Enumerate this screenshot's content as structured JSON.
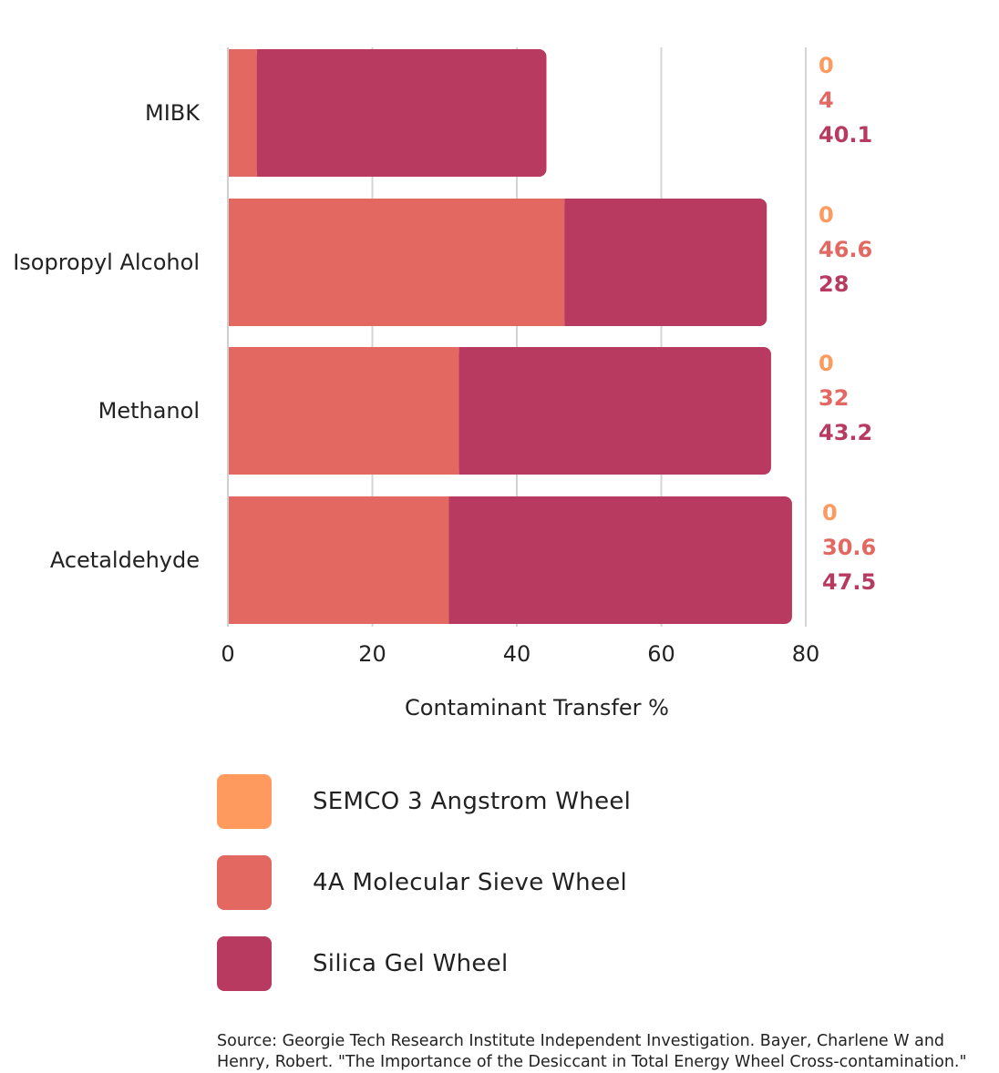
{
  "chart_data": {
    "type": "bar",
    "orientation": "horizontal",
    "stacked": true,
    "categories": [
      "MIBK",
      "Isopropyl Alcohol",
      "Methanol",
      "Acetaldehyde"
    ],
    "series": [
      {
        "name": "SEMCO 3 Angstrom Wheel",
        "values": [
          0,
          0,
          0,
          0
        ],
        "color": "#fe9a5e"
      },
      {
        "name": "4A Molecular Sieve Wheel",
        "values": [
          4,
          46.6,
          32,
          30.6
        ],
        "color": "#e26861"
      },
      {
        "name": "Silica Gel Wheel",
        "values": [
          40.1,
          28,
          43.2,
          47.5
        ],
        "color": "#b93a60"
      }
    ],
    "xlabel": "Contaminant Transfer %",
    "xlim": [
      0,
      80
    ],
    "xticks": [
      "0",
      "20",
      "40",
      "60",
      "80"
    ],
    "value_labels": [
      [
        "0",
        "4",
        "40.1"
      ],
      [
        "0",
        "46.6",
        "28"
      ],
      [
        "0",
        "32",
        "43.2"
      ],
      [
        "0",
        "30.6",
        "47.5"
      ]
    ],
    "grid": true,
    "legend_position": "bottom"
  },
  "legend": {
    "items": [
      {
        "label": "SEMCO 3 Angstrom Wheel",
        "color": "#fe9a5e"
      },
      {
        "label": "4A Molecular Sieve Wheel",
        "color": "#e26861"
      },
      {
        "label": "Silica Gel Wheel",
        "color": "#b93a60"
      }
    ]
  },
  "source": {
    "text": "Source: Georgie Tech Research Institute Independent Investigation. Bayer, Charlene W and Henry, Robert. \"The Importance of the Desiccant in Total Energy Wheel Cross-contamination.\""
  }
}
